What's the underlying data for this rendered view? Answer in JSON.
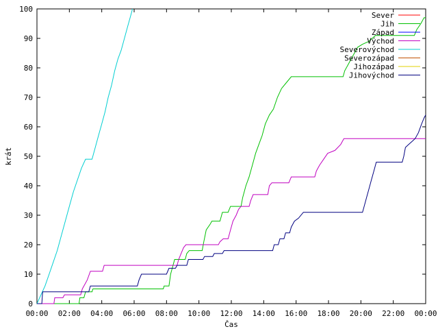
{
  "chart_data": {
    "type": "line",
    "title": "",
    "xlabel": "Čas",
    "ylabel": "krát",
    "xlim": [
      0,
      24
    ],
    "ylim": [
      0,
      100
    ],
    "x_unit": "hours",
    "x_tick_labels": [
      "00:00",
      "02:00",
      "04:00",
      "06:00",
      "08:00",
      "10:00",
      "12:00",
      "14:00",
      "16:00",
      "18:00",
      "20:00",
      "22:00",
      "00:00"
    ],
    "x_tick_values": [
      0,
      2,
      4,
      6,
      8,
      10,
      12,
      14,
      16,
      18,
      20,
      22,
      24
    ],
    "y_ticks": [
      0,
      10,
      20,
      30,
      40,
      50,
      60,
      70,
      80,
      90,
      100
    ],
    "grid": false,
    "legend_position": "top-right",
    "step": true,
    "series": [
      {
        "name": "Sever",
        "color": "#ff0000",
        "points": []
      },
      {
        "name": "Jih",
        "color": "#00c000",
        "points": [
          [
            0,
            0
          ],
          [
            2.6,
            0
          ],
          [
            2.65,
            2
          ],
          [
            2.9,
            2
          ],
          [
            3.0,
            4
          ],
          [
            3.4,
            4
          ],
          [
            3.45,
            5
          ],
          [
            7.8,
            5
          ],
          [
            7.85,
            6
          ],
          [
            8.15,
            6
          ],
          [
            8.25,
            10
          ],
          [
            8.4,
            13
          ],
          [
            8.5,
            15
          ],
          [
            9.15,
            15
          ],
          [
            9.25,
            17
          ],
          [
            9.4,
            18
          ],
          [
            10.2,
            18
          ],
          [
            10.3,
            21
          ],
          [
            10.45,
            25
          ],
          [
            10.7,
            27
          ],
          [
            10.8,
            28
          ],
          [
            11.3,
            28
          ],
          [
            11.45,
            31
          ],
          [
            11.8,
            31
          ],
          [
            11.95,
            33
          ],
          [
            12.6,
            33
          ],
          [
            12.7,
            36
          ],
          [
            12.9,
            40
          ],
          [
            13.1,
            43
          ],
          [
            13.3,
            47
          ],
          [
            13.5,
            51
          ],
          [
            13.7,
            54
          ],
          [
            13.9,
            57
          ],
          [
            14.1,
            61
          ],
          [
            14.35,
            64
          ],
          [
            14.6,
            66
          ],
          [
            14.85,
            70
          ],
          [
            15.1,
            73
          ],
          [
            15.4,
            75
          ],
          [
            15.7,
            77
          ],
          [
            18.9,
            77
          ],
          [
            19.0,
            79
          ],
          [
            19.2,
            81
          ],
          [
            19.5,
            84
          ],
          [
            19.8,
            87
          ],
          [
            20.1,
            88
          ],
          [
            20.5,
            89
          ],
          [
            20.9,
            91
          ],
          [
            23.3,
            91
          ],
          [
            23.45,
            93
          ],
          [
            23.7,
            95
          ],
          [
            23.9,
            97
          ],
          [
            24,
            97
          ]
        ]
      },
      {
        "name": "Západ",
        "color": "#0000ff",
        "points": []
      },
      {
        "name": "Východ",
        "color": "#c000c0",
        "points": [
          [
            0,
            0
          ],
          [
            1.05,
            0
          ],
          [
            1.1,
            2
          ],
          [
            1.6,
            2
          ],
          [
            1.7,
            3
          ],
          [
            2.7,
            3
          ],
          [
            2.8,
            5
          ],
          [
            3.1,
            8
          ],
          [
            3.3,
            11
          ],
          [
            4.05,
            11
          ],
          [
            4.15,
            13
          ],
          [
            8.65,
            13
          ],
          [
            8.75,
            15
          ],
          [
            8.9,
            17
          ],
          [
            9.05,
            19
          ],
          [
            9.2,
            20
          ],
          [
            11.2,
            20
          ],
          [
            11.3,
            21
          ],
          [
            11.5,
            22
          ],
          [
            11.8,
            22
          ],
          [
            11.95,
            25
          ],
          [
            12.1,
            28
          ],
          [
            12.3,
            30
          ],
          [
            12.45,
            32
          ],
          [
            12.6,
            33
          ],
          [
            13.1,
            33
          ],
          [
            13.2,
            35
          ],
          [
            13.35,
            37
          ],
          [
            14.25,
            37
          ],
          [
            14.35,
            40
          ],
          [
            14.5,
            41
          ],
          [
            15.55,
            41
          ],
          [
            15.7,
            43
          ],
          [
            17.15,
            43
          ],
          [
            17.25,
            45
          ],
          [
            17.45,
            47
          ],
          [
            17.7,
            49
          ],
          [
            17.95,
            51
          ],
          [
            18.4,
            52
          ],
          [
            18.75,
            54
          ],
          [
            18.95,
            56
          ],
          [
            24,
            56
          ]
        ]
      },
      {
        "name": "Severovýchod",
        "color": "#00ced1",
        "points": [
          [
            0,
            0
          ],
          [
            0.25,
            3
          ],
          [
            0.5,
            6
          ],
          [
            0.75,
            10
          ],
          [
            1.0,
            14
          ],
          [
            1.25,
            18
          ],
          [
            1.5,
            23
          ],
          [
            1.75,
            28
          ],
          [
            2.0,
            33
          ],
          [
            2.25,
            38
          ],
          [
            2.5,
            42
          ],
          [
            2.75,
            46
          ],
          [
            3.0,
            49
          ],
          [
            3.4,
            49
          ],
          [
            3.6,
            53
          ],
          [
            3.8,
            57
          ],
          [
            4.0,
            61
          ],
          [
            4.2,
            65
          ],
          [
            4.4,
            70
          ],
          [
            4.6,
            74
          ],
          [
            4.8,
            79
          ],
          [
            5.0,
            83
          ],
          [
            5.2,
            86
          ],
          [
            5.4,
            90
          ],
          [
            5.6,
            94
          ],
          [
            5.8,
            98
          ],
          [
            5.9,
            100
          ]
        ]
      },
      {
        "name": "Severozápad",
        "color": "#c05000",
        "points": []
      },
      {
        "name": "Jihozápad",
        "color": "#e0d000",
        "points": []
      },
      {
        "name": "Jihovýchod",
        "color": "#000080",
        "points": [
          [
            0,
            0
          ],
          [
            0.3,
            0
          ],
          [
            0.35,
            4
          ],
          [
            3.2,
            4
          ],
          [
            3.3,
            6
          ],
          [
            6.2,
            6
          ],
          [
            6.3,
            8
          ],
          [
            6.45,
            10
          ],
          [
            8.0,
            10
          ],
          [
            8.15,
            12
          ],
          [
            8.55,
            12
          ],
          [
            8.65,
            13
          ],
          [
            9.25,
            13
          ],
          [
            9.35,
            15
          ],
          [
            10.25,
            15
          ],
          [
            10.35,
            16
          ],
          [
            10.85,
            16
          ],
          [
            10.95,
            17
          ],
          [
            11.45,
            17
          ],
          [
            11.55,
            18
          ],
          [
            14.55,
            18
          ],
          [
            14.65,
            20
          ],
          [
            14.9,
            20
          ],
          [
            15.0,
            22
          ],
          [
            15.25,
            22
          ],
          [
            15.35,
            24
          ],
          [
            15.6,
            24
          ],
          [
            15.7,
            26
          ],
          [
            15.9,
            28
          ],
          [
            16.15,
            29
          ],
          [
            16.45,
            31
          ],
          [
            20.1,
            31
          ],
          [
            20.2,
            33
          ],
          [
            20.35,
            36
          ],
          [
            20.5,
            39
          ],
          [
            20.65,
            42
          ],
          [
            20.8,
            45
          ],
          [
            20.95,
            48
          ],
          [
            22.55,
            48
          ],
          [
            22.65,
            50
          ],
          [
            22.75,
            53
          ],
          [
            22.95,
            54
          ],
          [
            23.15,
            55
          ],
          [
            23.35,
            56
          ],
          [
            23.55,
            58
          ],
          [
            23.75,
            61
          ],
          [
            23.9,
            63
          ],
          [
            24,
            64
          ]
        ]
      }
    ]
  }
}
